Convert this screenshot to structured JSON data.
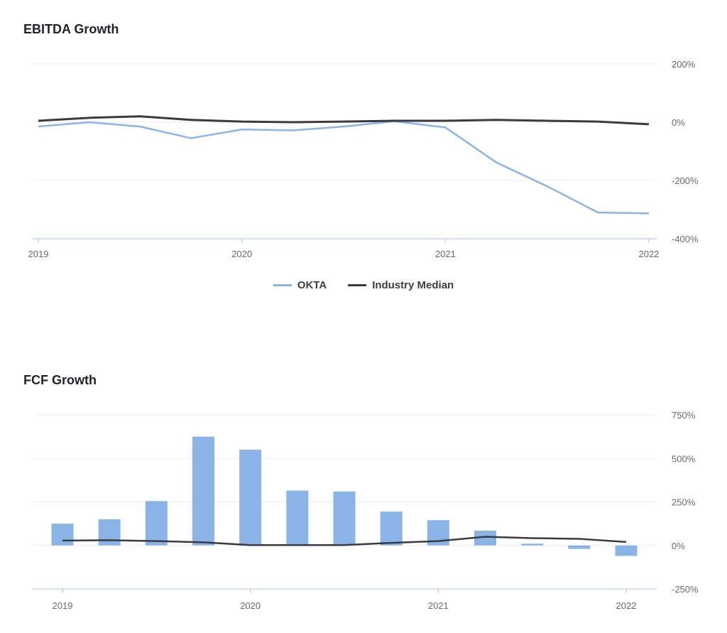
{
  "colors": {
    "okta": "#8ab4e8",
    "median": "#3a3b3f",
    "grid": "#eceef2",
    "axis": "#c9d6ea"
  },
  "chart_data": [
    {
      "type": "line",
      "title": "EBITDA Growth",
      "x_ticks": [
        "2019",
        "2020",
        "2021",
        "2022"
      ],
      "y_ticks": [
        "200%",
        "0%",
        "-200%",
        "-400%"
      ],
      "ylim": [
        -400,
        200
      ],
      "legend": "bottom-center",
      "series": [
        {
          "name": "OKTA",
          "color": "#8ab4e8",
          "x": [
            2019.0,
            2019.25,
            2019.5,
            2019.75,
            2020.0,
            2020.25,
            2020.5,
            2020.75,
            2021.0,
            2021.25,
            2021.5,
            2021.75,
            2022.0
          ],
          "values": [
            -15,
            0,
            -15,
            -55,
            -25,
            -28,
            -15,
            3,
            -18,
            -138,
            -220,
            -310,
            -313
          ]
        },
        {
          "name": "Industry Median",
          "color": "#3a3b3f",
          "x": [
            2019.0,
            2019.25,
            2019.5,
            2019.75,
            2020.0,
            2020.25,
            2020.5,
            2020.75,
            2021.0,
            2021.25,
            2021.5,
            2021.75,
            2022.0
          ],
          "values": [
            5,
            15,
            20,
            8,
            2,
            0,
            2,
            5,
            5,
            8,
            5,
            2,
            -7
          ]
        }
      ]
    },
    {
      "type": "bar",
      "title": "FCF Growth",
      "x_ticks": [
        "2019",
        "2020",
        "2021",
        "2022"
      ],
      "y_ticks": [
        "750%",
        "500%",
        "250%",
        "0%",
        "-250%"
      ],
      "ylim": [
        -250,
        750
      ],
      "series": [
        {
          "name": "OKTA",
          "kind": "bar",
          "color": "#8ab4e8",
          "x": [
            2019.0,
            2019.25,
            2019.5,
            2019.75,
            2020.0,
            2020.25,
            2020.5,
            2020.75,
            2021.0,
            2021.25,
            2021.5,
            2021.75,
            2022.0
          ],
          "values": [
            125,
            150,
            255,
            625,
            550,
            315,
            310,
            195,
            145,
            85,
            10,
            -20,
            -60
          ]
        },
        {
          "name": "Industry Median",
          "kind": "line",
          "color": "#3a3b3f",
          "x": [
            2019.0,
            2019.25,
            2019.5,
            2019.75,
            2020.0,
            2020.25,
            2020.5,
            2020.75,
            2021.0,
            2021.25,
            2021.5,
            2021.75,
            2022.0
          ],
          "values": [
            28,
            30,
            25,
            18,
            2,
            2,
            2,
            15,
            25,
            50,
            42,
            38,
            20
          ]
        }
      ]
    }
  ]
}
